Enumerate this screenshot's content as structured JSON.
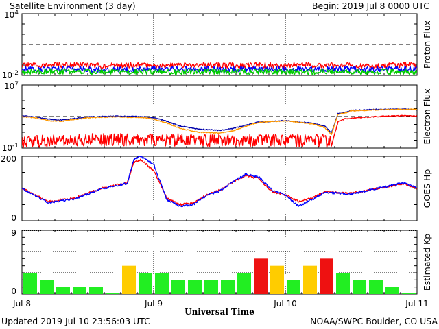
{
  "header": {
    "title": "Satellite Environment (3 day)",
    "begin": "Begin:  2019 Jul 8 0000 UTC"
  },
  "footer": {
    "updated": "Updated 2019 Jul 10 23:56:03 UTC",
    "credit": "NOAA/SWPC Boulder, CO USA"
  },
  "chart_data": [
    {
      "type": "line",
      "ylabel": "Proton Flux",
      "y_scale": "log",
      "ylim": [
        0.01,
        10000
      ],
      "y_tick_labels": [
        {
          "base": "10",
          "exp": "4",
          "value": 10000
        },
        {
          "base": "10",
          "exp": "-2",
          "value": 0.01
        }
      ],
      "threshold": 10,
      "x_range_days": [
        0,
        3
      ],
      "series": [
        {
          "color": "#ff0000",
          "values": [
            0.095,
            0.1,
            0.09,
            0.1,
            0.095,
            0.1,
            0.09,
            0.095,
            0.1,
            0.095,
            0.09,
            0.1,
            0.095
          ]
        },
        {
          "color": "#0000ff",
          "values": [
            0.04,
            0.042,
            0.038,
            0.04,
            0.041,
            0.04,
            0.039,
            0.04,
            0.042,
            0.04,
            0.039,
            0.041,
            0.04
          ]
        },
        {
          "color": "#00cc00",
          "values": [
            0.022,
            0.024,
            0.021,
            0.023,
            0.022,
            0.024,
            0.022,
            0.023,
            0.022,
            0.024,
            0.022,
            0.023,
            0.022
          ]
        }
      ]
    },
    {
      "type": "line",
      "ylabel": "Electron Flux",
      "y_scale": "log",
      "ylim": [
        0.1,
        10000000
      ],
      "y_tick_labels": [
        {
          "base": "10",
          "exp": "7",
          "value": 10000000
        },
        {
          "base": "10",
          "exp": "-1",
          "value": 0.1
        }
      ],
      "threshold": 1000,
      "x_range_days": [
        0,
        3
      ],
      "series": [
        {
          "color": "#0000aa",
          "points": [
            [
              0,
              1200
            ],
            [
              0.1,
              900
            ],
            [
              0.2,
              500
            ],
            [
              0.3,
              350
            ],
            [
              0.5,
              900
            ],
            [
              0.7,
              1100
            ],
            [
              0.9,
              1000
            ],
            [
              1.0,
              700
            ],
            [
              1.1,
              250
            ],
            [
              1.2,
              60
            ],
            [
              1.35,
              25
            ],
            [
              1.5,
              18
            ],
            [
              1.6,
              30
            ],
            [
              1.7,
              80
            ],
            [
              1.8,
              200
            ],
            [
              2.0,
              300
            ],
            [
              2.1,
              200
            ],
            [
              2.2,
              150
            ],
            [
              2.3,
              60
            ],
            [
              2.35,
              8
            ],
            [
              2.4,
              2500
            ],
            [
              2.45,
              3000
            ],
            [
              2.5,
              6000
            ],
            [
              2.7,
              8000
            ],
            [
              2.9,
              9000
            ],
            [
              3.0,
              7000
            ]
          ]
        },
        {
          "color": "#ff9900",
          "points": [
            [
              0,
              1000
            ],
            [
              0.1,
              700
            ],
            [
              0.2,
              300
            ],
            [
              0.3,
              250
            ],
            [
              0.5,
              700
            ],
            [
              0.7,
              900
            ],
            [
              0.9,
              800
            ],
            [
              1.0,
              500
            ],
            [
              1.1,
              150
            ],
            [
              1.2,
              30
            ],
            [
              1.35,
              10
            ],
            [
              1.5,
              8
            ],
            [
              1.6,
              15
            ],
            [
              1.7,
              60
            ],
            [
              1.8,
              180
            ],
            [
              2.0,
              280
            ],
            [
              2.1,
              180
            ],
            [
              2.2,
              120
            ],
            [
              2.3,
              40
            ],
            [
              2.35,
              5
            ],
            [
              2.4,
              2000
            ],
            [
              2.45,
              2500
            ],
            [
              2.5,
              5000
            ],
            [
              2.7,
              7000
            ],
            [
              2.9,
              8500
            ],
            [
              3.0,
              8000
            ]
          ]
        },
        {
          "color": "#ff0000",
          "points": [
            [
              0,
              0.3
            ],
            [
              0.5,
              0.5
            ],
            [
              1.0,
              0.6
            ],
            [
              1.5,
              0.4
            ],
            [
              2.0,
              0.5
            ],
            [
              2.3,
              0.4
            ],
            [
              2.35,
              0.2
            ],
            [
              2.4,
              200
            ],
            [
              2.45,
              500
            ],
            [
              2.5,
              600
            ],
            [
              2.7,
              1000
            ],
            [
              2.9,
              1300
            ],
            [
              3.0,
              1100
            ]
          ]
        }
      ]
    },
    {
      "type": "line",
      "ylabel": "GOES Hp",
      "ylim": [
        0,
        200
      ],
      "y_ticks": [
        0,
        200
      ],
      "x_range_days": [
        0,
        3
      ],
      "series": [
        {
          "color": "#ff0000",
          "points": [
            [
              0,
              100
            ],
            [
              0.2,
              60
            ],
            [
              0.4,
              70
            ],
            [
              0.6,
              100
            ],
            [
              0.8,
              118
            ],
            [
              0.85,
              180
            ],
            [
              0.9,
              190
            ],
            [
              1.0,
              155
            ],
            [
              1.1,
              70
            ],
            [
              1.2,
              50
            ],
            [
              1.3,
              55
            ],
            [
              1.4,
              80
            ],
            [
              1.5,
              95
            ],
            [
              1.6,
              120
            ],
            [
              1.7,
              140
            ],
            [
              1.8,
              130
            ],
            [
              1.9,
              90
            ],
            [
              2.0,
              80
            ],
            [
              2.1,
              60
            ],
            [
              2.2,
              70
            ],
            [
              2.3,
              90
            ],
            [
              2.5,
              85
            ],
            [
              2.7,
              100
            ],
            [
              2.9,
              115
            ],
            [
              3.0,
              100
            ]
          ]
        },
        {
          "color": "#0000ff",
          "points": [
            [
              0,
              100
            ],
            [
              0.2,
              55
            ],
            [
              0.4,
              68
            ],
            [
              0.6,
              98
            ],
            [
              0.8,
              116
            ],
            [
              0.85,
              190
            ],
            [
              0.9,
              200
            ],
            [
              1.0,
              175
            ],
            [
              1.1,
              65
            ],
            [
              1.2,
              45
            ],
            [
              1.3,
              50
            ],
            [
              1.4,
              78
            ],
            [
              1.5,
              92
            ],
            [
              1.6,
              120
            ],
            [
              1.7,
              145
            ],
            [
              1.8,
              135
            ],
            [
              1.9,
              95
            ],
            [
              2.0,
              80
            ],
            [
              2.1,
              45
            ],
            [
              2.2,
              65
            ],
            [
              2.3,
              88
            ],
            [
              2.5,
              82
            ],
            [
              2.7,
              100
            ],
            [
              2.9,
              118
            ],
            [
              3.0,
              100
            ]
          ]
        }
      ]
    },
    {
      "type": "bar",
      "ylabel": "Estimated Kp",
      "ylim": [
        0,
        9
      ],
      "y_ticks": [
        0,
        9
      ],
      "x_tick_labels": [
        "Jul 8",
        "Jul 9",
        "Jul 10",
        "Jul 11"
      ],
      "xlabel": "Universal Time",
      "bin_hours": 3,
      "values": [
        3,
        2,
        1,
        1,
        1,
        0,
        4,
        3,
        3,
        2,
        2,
        2,
        2,
        3,
        5,
        4,
        2,
        4,
        5,
        3,
        2,
        2,
        1,
        0
      ],
      "colors": [
        "#22ee22",
        "#22ee22",
        "#22ee22",
        "#22ee22",
        "#22ee22",
        "#22ee22",
        "#ffcc00",
        "#22ee22",
        "#22ee22",
        "#22ee22",
        "#22ee22",
        "#22ee22",
        "#22ee22",
        "#22ee22",
        "#ee1111",
        "#ffcc00",
        "#22ee22",
        "#ffcc00",
        "#ee1111",
        "#22ee22",
        "#22ee22",
        "#22ee22",
        "#22ee22",
        "#22ee22"
      ]
    }
  ]
}
